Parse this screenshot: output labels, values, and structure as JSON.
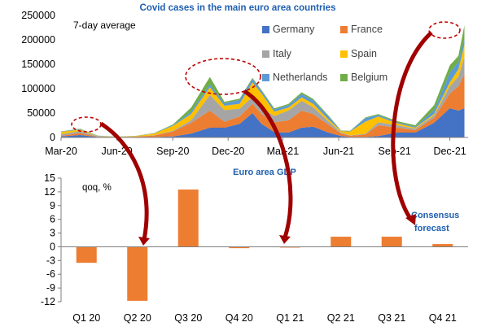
{
  "colors": {
    "Germany": "#4472C4",
    "France": "#ED7D31",
    "Italy": "#A5A5A5",
    "Spain": "#FFC000",
    "Netherlands": "#5B9BD5",
    "Belgium": "#70AD47",
    "title": "#1F5FAF",
    "gdp_bar": "#ED7D31",
    "callout": "#C00000",
    "axis": "#7F7F7F"
  },
  "chart_data": [
    {
      "type": "area",
      "stacked": true,
      "title": "Covid cases in the main euro area countries",
      "annotation": "7-day average",
      "x_tick_labels": [
        "Mar-20",
        "Jun-20",
        "Sep-20",
        "Dec-20",
        "Mar-21",
        "Jun-21",
        "Sep-21",
        "Dec-21"
      ],
      "y_tick_labels": [
        "0",
        "50000",
        "100000",
        "150000",
        "200000",
        "250000"
      ],
      "ylim": [
        0,
        250000
      ],
      "legend_placement": "top-right",
      "x": [
        "2020-03-01",
        "2020-04-01",
        "2020-05-01",
        "2020-06-01",
        "2020-07-01",
        "2020-08-01",
        "2020-09-01",
        "2020-10-01",
        "2020-11-01",
        "2020-11-25",
        "2020-12-20",
        "2021-01-10",
        "2021-01-25",
        "2021-02-15",
        "2021-03-10",
        "2021-04-01",
        "2021-04-20",
        "2021-05-15",
        "2021-06-05",
        "2021-06-20",
        "2021-07-15",
        "2021-08-05",
        "2021-09-05",
        "2021-10-05",
        "2021-11-05",
        "2021-12-01",
        "2021-12-15",
        "2021-12-25"
      ],
      "series": [
        {
          "name": "Germany",
          "values": [
            2000,
            5000,
            1000,
            500,
            500,
            1000,
            2000,
            8000,
            20000,
            20000,
            28000,
            50000,
            28000,
            11000,
            10000,
            20000,
            22000,
            10000,
            3000,
            1000,
            1000,
            3000,
            10000,
            10000,
            30000,
            60000,
            55000,
            60000
          ]
        },
        {
          "name": "France",
          "values": [
            1500,
            4000,
            500,
            500,
            1000,
            3000,
            10000,
            22000,
            35000,
            12000,
            15000,
            19000,
            20000,
            20000,
            25000,
            35000,
            26000,
            16000,
            5000,
            2500,
            5000,
            22000,
            10000,
            5000,
            10000,
            30000,
            50000,
            70000
          ]
        },
        {
          "name": "Italy",
          "values": [
            3000,
            4000,
            1000,
            300,
            200,
            500,
            1500,
            5000,
            32000,
            24000,
            16000,
            14000,
            12000,
            13000,
            20000,
            20000,
            14000,
            7000,
            2000,
            800,
            1500,
            6000,
            5000,
            3000,
            5000,
            15000,
            20000,
            35000
          ]
        },
        {
          "name": "Spain",
          "values": [
            5000,
            3000,
            500,
            300,
            1000,
            3500,
            10000,
            13000,
            16000,
            9000,
            10000,
            30000,
            30000,
            9000,
            6000,
            7000,
            7000,
            4000,
            3000,
            8000,
            25000,
            12000,
            4000,
            2000,
            3000,
            8000,
            15000,
            25000
          ]
        },
        {
          "name": "Netherlands",
          "values": [
            500,
            1000,
            300,
            200,
            200,
            500,
            1500,
            5000,
            6000,
            5000,
            8000,
            7000,
            5000,
            4500,
            5000,
            7000,
            7000,
            6000,
            800,
            1000,
            7000,
            3000,
            2000,
            2000,
            8000,
            20000,
            15000,
            12000
          ]
        },
        {
          "name": "Belgium",
          "values": [
            500,
            1000,
            300,
            200,
            200,
            500,
            1500,
            8000,
            15000,
            3000,
            2500,
            2000,
            2000,
            2000,
            2500,
            3500,
            3000,
            2000,
            500,
            300,
            1500,
            2000,
            2500,
            3000,
            10000,
            15000,
            12000,
            28000
          ]
        }
      ]
    },
    {
      "type": "bar",
      "title": "Euro area GDP",
      "ylabel": "qoq, %",
      "categories": [
        "Q1 20",
        "Q2 20",
        "Q3 20",
        "Q4 20",
        "Q1 21",
        "Q2 21",
        "Q3 21",
        "Q4 21"
      ],
      "values": [
        -3.5,
        -11.8,
        12.5,
        -0.3,
        -0.1,
        2.2,
        2.2,
        0.6
      ],
      "ylim": [
        -12,
        15
      ],
      "y_tick_labels": [
        "-12",
        "-9",
        "-6",
        "-3",
        "0",
        "3",
        "6",
        "9",
        "12",
        "15"
      ],
      "annotation": "Consensus forecast"
    }
  ]
}
